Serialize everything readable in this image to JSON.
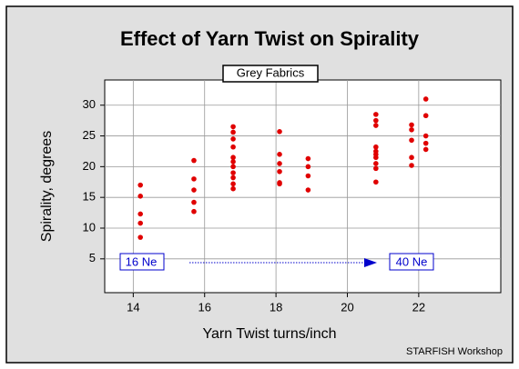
{
  "chart_data": {
    "type": "scatter",
    "title": "Effect of Yarn Twist on Spirality",
    "subtitle": "Grey Fabrics",
    "x_label": "Yarn Twist  turns/inch",
    "y_label": "Spirality, degrees",
    "annotations": [
      "16 Ne",
      "40 Ne"
    ],
    "footer": "STARFISH Workshop",
    "xlim": [
      13.2,
      24.3
    ],
    "ylim": [
      -0.5,
      34.1
    ],
    "xticks": [
      14,
      16,
      18,
      20,
      22
    ],
    "yticks": [
      5,
      10,
      15,
      20,
      25,
      30
    ],
    "grid": true,
    "series": [
      {
        "name": null,
        "color": "#e00000",
        "x": [
          14.2,
          14.2,
          14.2,
          14.2,
          14.2,
          15.7,
          15.7,
          15.7,
          15.7,
          15.7,
          16.8,
          16.8,
          16.8,
          16.8,
          16.8,
          16.8,
          16.8,
          16.8,
          16.8,
          16.8,
          16.8,
          18.1,
          18.1,
          18.1,
          18.1,
          18.1,
          18.1,
          18.9,
          18.9,
          18.9,
          18.9,
          20.8,
          20.8,
          20.8,
          20.8,
          20.8,
          20.8,
          20.8,
          20.8,
          20.8,
          20.8,
          21.8,
          21.8,
          21.8,
          21.8,
          21.8,
          22.2,
          22.2,
          22.2,
          22.2,
          22.2
        ],
        "values": [
          17,
          15.2,
          12.3,
          10.8,
          8.5,
          21,
          18,
          16.2,
          14.2,
          12.7,
          26.5,
          25.6,
          24.5,
          23.2,
          21.5,
          20.8,
          20,
          19,
          18.2,
          17.2,
          16.4,
          25.7,
          22,
          20.5,
          19.2,
          17.4,
          17.2,
          21.3,
          20,
          18.5,
          16.2,
          28.5,
          27.5,
          26.7,
          23.2,
          22.5,
          22,
          21.5,
          20.5,
          19.7,
          17.5,
          26.8,
          26,
          24.3,
          21.5,
          20.2,
          31,
          28.3,
          25,
          23.8,
          22.8
        ]
      }
    ]
  }
}
